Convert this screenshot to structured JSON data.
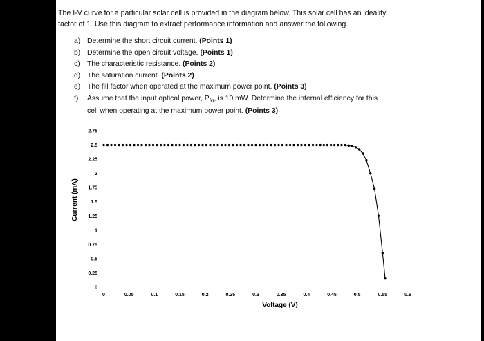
{
  "document": {
    "intro_line1": "The I-V curve for a particular solar cell is provided in the diagram below.  This solar cell has an ideality",
    "intro_line2": "factor of 1. Use this diagram to extract performance information and answer the following.",
    "questions": [
      {
        "letter": "a)",
        "text": "Determine the short circuit current. ",
        "points": "(Points 1)"
      },
      {
        "letter": "b)",
        "text": "Determine the open circuit voltage. ",
        "points": "(Points 1)"
      },
      {
        "letter": "c)",
        "text": "The characteristic resistance. ",
        "points": "(Points 2)"
      },
      {
        "letter": "d)",
        "text": "The saturation current. ",
        "points": "(Points 2)"
      },
      {
        "letter": "e)",
        "text": "The fill factor when operated at the maximum power point. ",
        "points": "(Points 3)"
      },
      {
        "letter": "f)",
        "text": "Assume that the input optical power, P",
        "sub": "in",
        "text_after": ", is 10 mW. Determine the internal efficiency for this",
        "continuation": "cell when operating at the maximum power point. ",
        "points": "(Points 3)"
      }
    ]
  },
  "chart_data": {
    "type": "line",
    "title": "",
    "xlabel": "Voltage (V)",
    "ylabel": "Current (mA)",
    "xlim": [
      0,
      0.6
    ],
    "ylim": [
      0,
      2.75
    ],
    "x_ticks": [
      "0",
      "0.05",
      "0.1",
      "0.15",
      "0.2",
      "0.25",
      "0.3",
      "0.35",
      "0.4",
      "0.45",
      "0.5",
      "0.55",
      "0.6"
    ],
    "y_ticks": [
      "0",
      "0.25",
      "0.5",
      "0.75",
      "1",
      "1.25",
      "1.5",
      "1.75",
      "2",
      "2.25",
      "2.5",
      "2.75"
    ],
    "grid": false,
    "series": [
      {
        "color": "#000000",
        "x": [
          0,
          0.0075,
          0.015,
          0.0225,
          0.03,
          0.0375,
          0.045,
          0.0525,
          0.06,
          0.0675,
          0.075,
          0.0825,
          0.09,
          0.0975,
          0.105,
          0.1125,
          0.12,
          0.1275,
          0.135,
          0.1425,
          0.15,
          0.1575,
          0.165,
          0.1725,
          0.18,
          0.1875,
          0.195,
          0.2025,
          0.21,
          0.2175,
          0.225,
          0.2325,
          0.24,
          0.2475,
          0.255,
          0.2625,
          0.27,
          0.2775,
          0.285,
          0.2925,
          0.3,
          0.3075,
          0.315,
          0.3225,
          0.33,
          0.3375,
          0.345,
          0.3525,
          0.36,
          0.3675,
          0.375,
          0.3825,
          0.39,
          0.3975,
          0.405,
          0.4125,
          0.42,
          0.427,
          0.434,
          0.441,
          0.448,
          0.455,
          0.462,
          0.469,
          0.476,
          0.483,
          0.49,
          0.497,
          0.504,
          0.511,
          0.518,
          0.526,
          0.534,
          0.542,
          0.55,
          0.555
        ],
        "y": [
          2.5,
          2.5,
          2.5,
          2.5,
          2.5,
          2.5,
          2.5,
          2.5,
          2.5,
          2.5,
          2.5,
          2.5,
          2.5,
          2.5,
          2.5,
          2.5,
          2.5,
          2.5,
          2.5,
          2.5,
          2.5,
          2.5,
          2.5,
          2.5,
          2.5,
          2.5,
          2.5,
          2.5,
          2.5,
          2.5,
          2.5,
          2.5,
          2.5,
          2.5,
          2.5,
          2.5,
          2.5,
          2.5,
          2.5,
          2.5,
          2.5,
          2.5,
          2.5,
          2.5,
          2.5,
          2.5,
          2.5,
          2.5,
          2.5,
          2.5,
          2.5,
          2.5,
          2.5,
          2.5,
          2.5,
          2.5,
          2.5,
          2.5,
          2.5,
          2.5,
          2.5,
          2.5,
          2.5,
          2.5,
          2.5,
          2.49,
          2.48,
          2.46,
          2.42,
          2.35,
          2.23,
          2.0,
          1.73,
          1.25,
          0.6,
          0.15
        ]
      }
    ]
  }
}
